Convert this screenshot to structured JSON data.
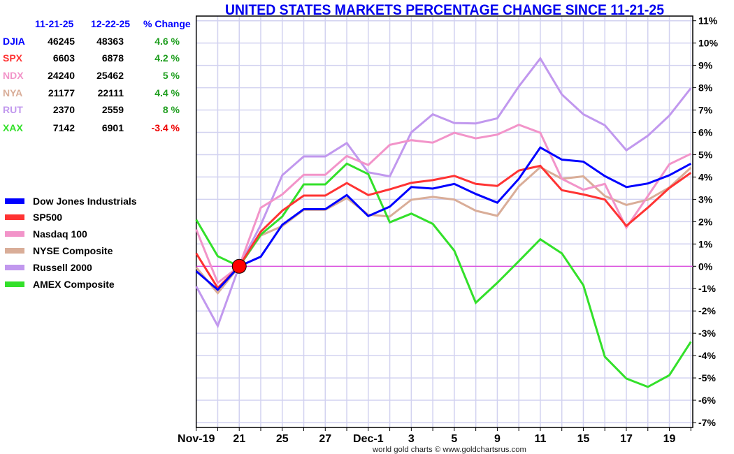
{
  "title": "UNITED STATES MARKETS PERCENTAGE CHANGE SINCE 11-21-25",
  "title_color": "#0000ee",
  "table": {
    "headers": [
      "11-21-25",
      "12-22-25",
      "% Change"
    ],
    "header_color": "#0000ff",
    "rows": [
      {
        "symbol": "DJIA",
        "color": "#0000ff",
        "start": "46245",
        "end": "48363",
        "change": "4.6 %",
        "change_color": "#1e9e1e"
      },
      {
        "symbol": "SPX",
        "color": "#ff3333",
        "start": "6603",
        "end": "6878",
        "change": "4.2 %",
        "change_color": "#1e9e1e"
      },
      {
        "symbol": "NDX",
        "color": "#f294c9",
        "start": "24240",
        "end": "25462",
        "change": "5 %",
        "change_color": "#1e9e1e"
      },
      {
        "symbol": "NYA",
        "color": "#d9ad98",
        "start": "21177",
        "end": "22111",
        "change": "4.4 %",
        "change_color": "#1e9e1e"
      },
      {
        "symbol": "RUT",
        "color": "#c198ee",
        "start": "2370",
        "end": "2559",
        "change": "8 %",
        "change_color": "#1e9e1e"
      },
      {
        "symbol": "XAX",
        "color": "#33e02a",
        "start": "7142",
        "end": "6901",
        "change": "-3.4 %",
        "change_color": "#ee0000"
      }
    ]
  },
  "legend": [
    {
      "label": "Dow Jones Industrials",
      "color": "#0000ff"
    },
    {
      "label": "SP500",
      "color": "#ff3333"
    },
    {
      "label": "Nasdaq 100",
      "color": "#f294c9"
    },
    {
      "label": "NYSE Composite",
      "color": "#d9ad98"
    },
    {
      "label": "Russell 2000",
      "color": "#c198ee"
    },
    {
      "label": "AMEX Composite",
      "color": "#33e02a"
    }
  ],
  "footer": "world gold charts © www.goldchartsrus.com",
  "chart_data": {
    "type": "line",
    "title": "UNITED STATES MARKETS PERCENTAGE CHANGE SINCE 11-21-25",
    "xlabel": "",
    "ylabel": "",
    "categories": [
      "Nov-19",
      "",
      "21",
      "",
      "25",
      "",
      "27",
      "",
      "Dec-1",
      "",
      "3",
      "",
      "5",
      "",
      "9",
      "",
      "11",
      "",
      "15",
      "",
      "17",
      "",
      "19",
      ""
    ],
    "ylim": [
      -7,
      11
    ],
    "y_tick_values": [
      11,
      10,
      9,
      8,
      7,
      6,
      5,
      4,
      3,
      2,
      1,
      0,
      -1,
      -2,
      -3,
      -4,
      -5,
      -6,
      -7
    ],
    "y_tick_labels": [
      "11%",
      "10%",
      "9%",
      "8%",
      "7%",
      "6%",
      "5%",
      "4%",
      "3%",
      "2%",
      "1%",
      "0%",
      "-1%",
      "-2%",
      "-3%",
      "-4%",
      "-5%",
      "-6%",
      "-7%"
    ],
    "y_axis_side": "right",
    "grid": true,
    "legend_position": "left",
    "baseline": {
      "value": 0,
      "color": "#dd44dd"
    },
    "reference_marker": {
      "index": 2,
      "value": 0,
      "color": "#ff0000"
    },
    "series": [
      {
        "name": "Dow Jones Industrials",
        "symbol": "DJIA",
        "color": "#0000ff",
        "values": [
          -0.22,
          -1.05,
          0,
          0.43,
          1.86,
          2.56,
          2.56,
          3.19,
          2.25,
          2.67,
          3.55,
          3.48,
          3.69,
          3.24,
          2.85,
          3.92,
          5.32,
          4.78,
          4.69,
          4.04,
          3.55,
          3.71,
          4.08,
          4.6
        ]
      },
      {
        "name": "SP500",
        "symbol": "SPX",
        "color": "#ff3333",
        "values": [
          0.58,
          -0.97,
          0,
          1.55,
          2.49,
          3.17,
          3.17,
          3.73,
          3.19,
          3.45,
          3.74,
          3.86,
          4.05,
          3.69,
          3.6,
          4.29,
          4.5,
          3.41,
          3.22,
          2.99,
          1.81,
          2.63,
          3.51,
          4.19
        ]
      },
      {
        "name": "Nasdaq 100",
        "symbol": "NDX",
        "color": "#f294c9",
        "values": [
          1.65,
          -0.74,
          0,
          2.62,
          3.22,
          4.1,
          4.1,
          4.94,
          4.54,
          5.44,
          5.65,
          5.54,
          5.98,
          5.73,
          5.9,
          6.34,
          5.98,
          3.92,
          3.43,
          3.69,
          1.73,
          3.15,
          4.57,
          5.04
        ]
      },
      {
        "name": "NYSE Composite",
        "symbol": "NYA",
        "color": "#d9ad98",
        "values": [
          -0.05,
          -1.2,
          0,
          1.38,
          1.8,
          2.53,
          2.53,
          3.06,
          2.31,
          2.23,
          2.98,
          3.11,
          2.99,
          2.49,
          2.26,
          3.58,
          4.44,
          3.92,
          4.03,
          3.15,
          2.75,
          2.98,
          3.53,
          4.42
        ]
      },
      {
        "name": "Russell 2000",
        "symbol": "RUT",
        "color": "#c198ee",
        "values": [
          -0.9,
          -2.67,
          0,
          1.85,
          4.08,
          4.92,
          4.92,
          5.52,
          4.21,
          4.03,
          6.0,
          6.81,
          6.42,
          6.4,
          6.63,
          8.06,
          9.31,
          7.7,
          6.81,
          6.32,
          5.2,
          5.85,
          6.75,
          7.98
        ]
      },
      {
        "name": "AMEX Composite",
        "symbol": "XAX",
        "color": "#33e02a",
        "values": [
          2.09,
          0.45,
          0,
          1.42,
          2.23,
          3.67,
          3.67,
          4.6,
          4.13,
          1.97,
          2.36,
          1.9,
          0.7,
          -1.63,
          -0.74,
          0.23,
          1.21,
          0.58,
          -0.85,
          -4.05,
          -5.03,
          -5.4,
          -4.88,
          -3.38
        ]
      }
    ]
  }
}
